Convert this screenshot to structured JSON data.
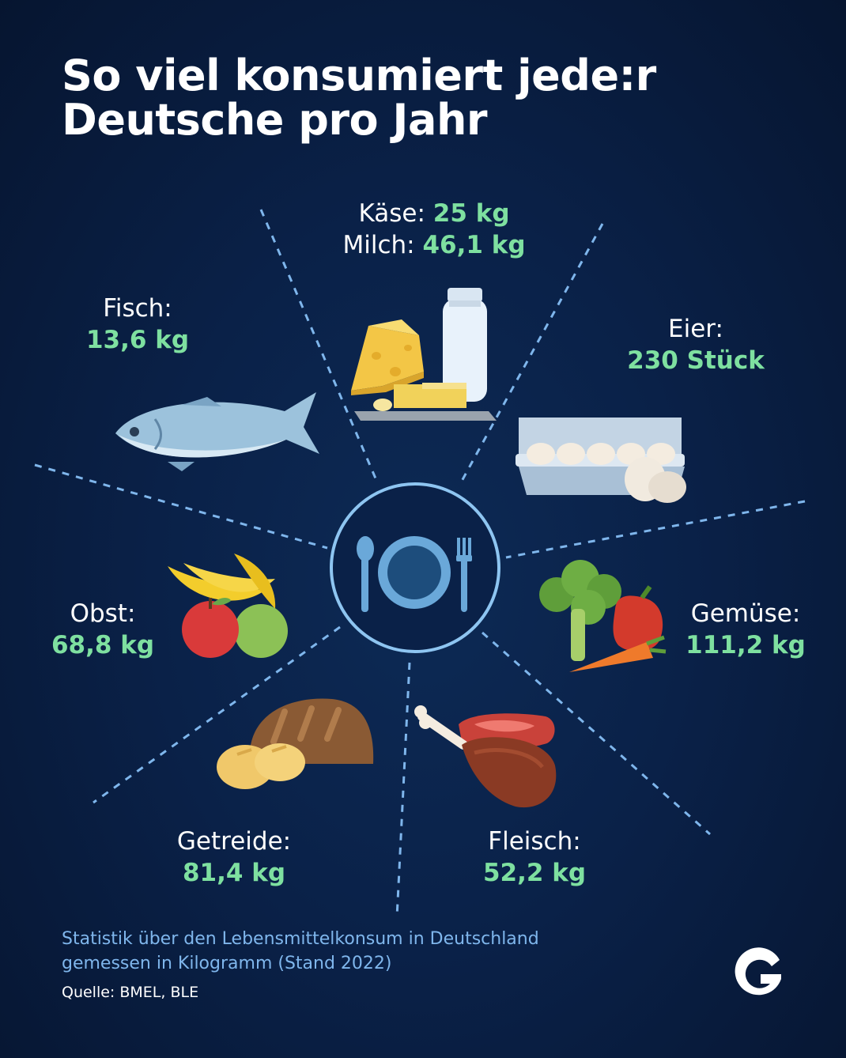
{
  "title_line1": "So viel konsumiert jede:r",
  "title_line2": "Deutsche pro Jahr",
  "items": {
    "kaese": {
      "name": "Käse:",
      "value": "25 kg"
    },
    "milch": {
      "name": "Milch:",
      "value": "46,1 kg"
    },
    "fisch": {
      "name": "Fisch:",
      "value": "13,6 kg"
    },
    "eier": {
      "name": "Eier:",
      "value": "230 Stück"
    },
    "obst": {
      "name": "Obst:",
      "value": "68,8 kg"
    },
    "gemuese": {
      "name": "Gemüse:",
      "value": "111,2 kg"
    },
    "getreide": {
      "name": "Getreide:",
      "value": "81,4 kg"
    },
    "fleisch": {
      "name": "Fleisch:",
      "value": "52,2 kg"
    }
  },
  "caption_line1": "Statistik über den Lebensmittelkonsum in Deutschland",
  "caption_line2": "gemessen in Kilogramm (Stand 2022)",
  "source": "Quelle: BMEL, BLE",
  "colors": {
    "background": "#0a2148",
    "value_green": "#7ee0a0",
    "caption_blue": "#7fb6ec",
    "divider_blue": "#7fb6ec"
  }
}
